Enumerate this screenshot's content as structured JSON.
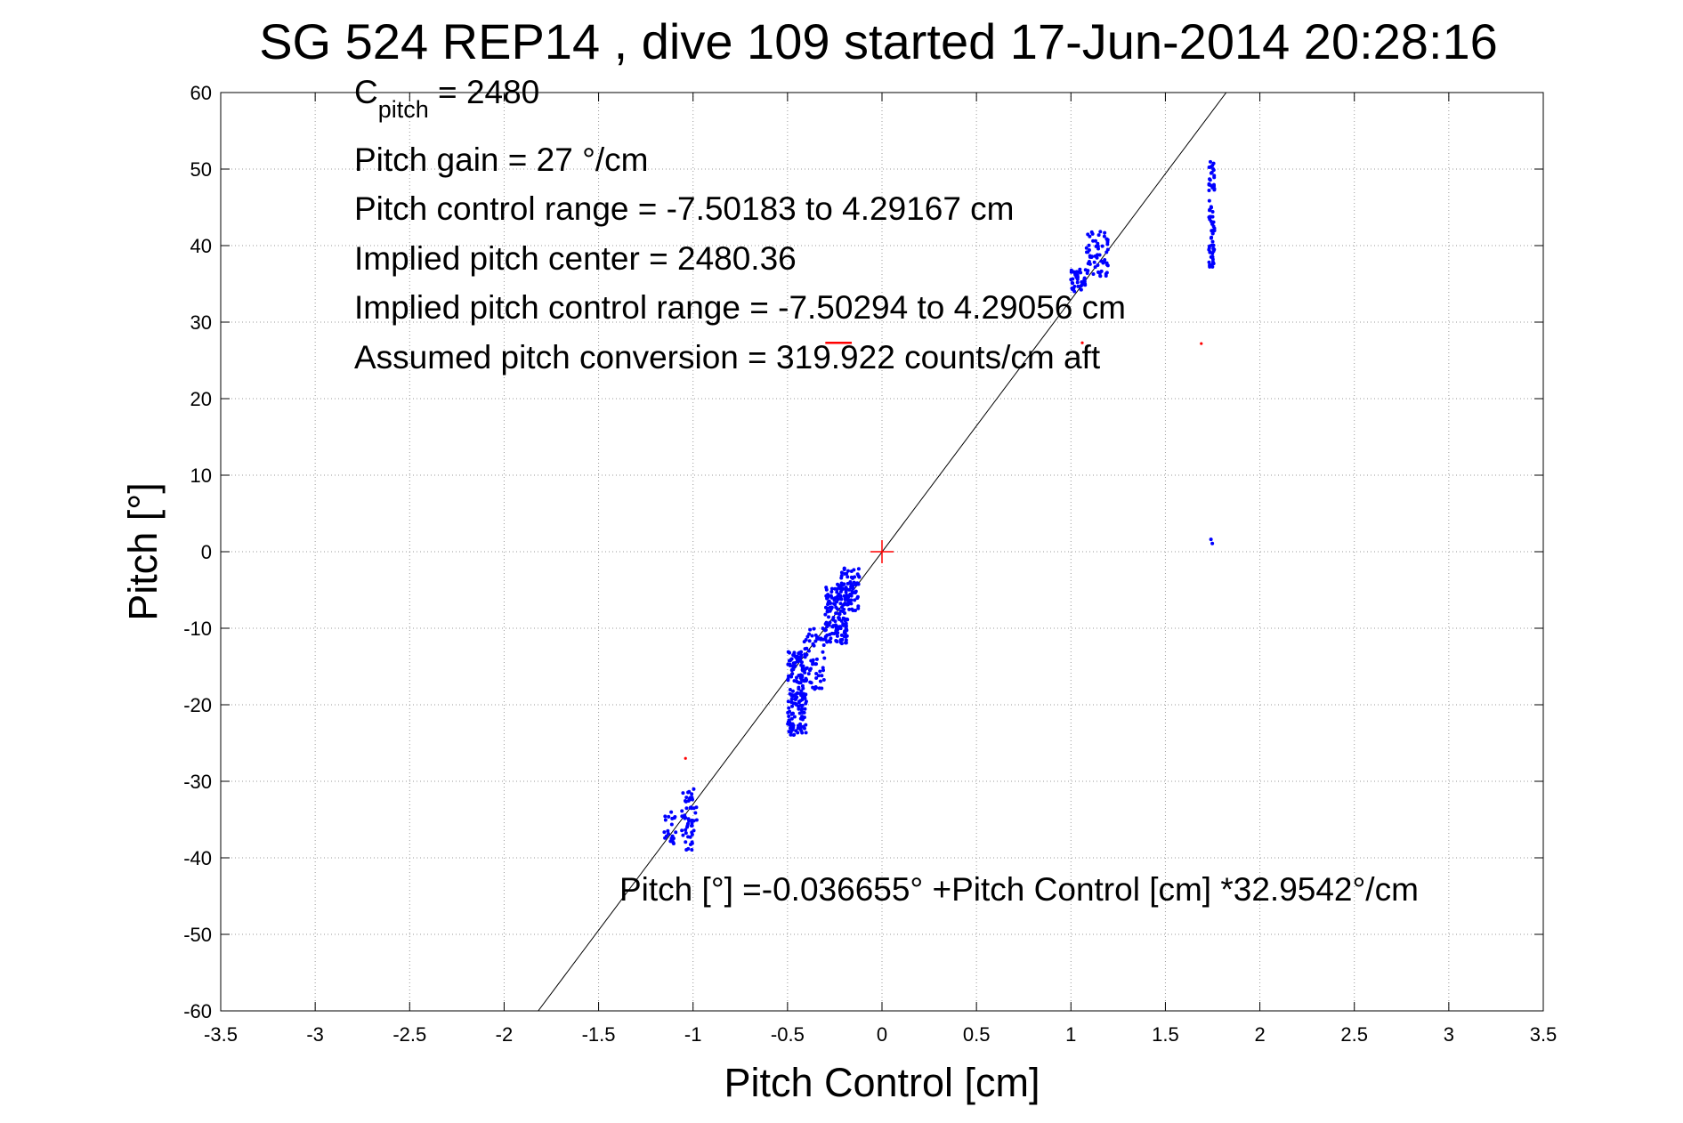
{
  "chart_data": {
    "type": "scatter",
    "title": "SG 524   REP14  , dive 109 started 17-Jun-2014 20:28:16",
    "xlabel": "Pitch Control [cm]",
    "ylabel": "Pitch [°]",
    "xlim": [
      -3.5,
      3.5
    ],
    "ylim": [
      -60,
      60
    ],
    "xticks": [
      -3.5,
      -3,
      -2.5,
      -2,
      -1.5,
      -1,
      -0.5,
      0,
      0.5,
      1,
      1.5,
      2,
      2.5,
      3,
      3.5
    ],
    "xtick_labels": [
      "-3.5",
      "-3",
      "-2.5",
      "-2",
      "-1.5",
      "-1",
      "-0.5",
      "0",
      "0.5",
      "1",
      "1.5",
      "2",
      "2.5",
      "3",
      "3.5"
    ],
    "yticks": [
      -60,
      -50,
      -40,
      -30,
      -20,
      -10,
      0,
      10,
      20,
      30,
      40,
      50,
      60
    ],
    "ytick_labels": [
      "-60",
      "-50",
      "-40",
      "-30",
      "-20",
      "-10",
      "0",
      "10",
      "20",
      "30",
      "40",
      "50",
      "60"
    ],
    "grid": true,
    "annotations": {
      "c_pitch_main": "C",
      "c_pitch_sub": "pitch",
      "c_pitch_value": " = 2480",
      "gain": "Pitch gain = 27 °/cm",
      "range": "Pitch control range = -7.50183 to 4.29167 cm",
      "center": "Implied pitch center = 2480.36",
      "implied_range": "Implied pitch control range = -7.50294 to 4.29056 cm",
      "conversion": "Assumed pitch conversion = 319.922 counts/cm aft",
      "fit_equation": "Pitch [°] =-0.036655° +Pitch Control [cm] *32.9542°/cm"
    },
    "fit_line": {
      "intercept": -0.036655,
      "slope": 32.9542,
      "color": "#000000"
    },
    "center_marker": {
      "x": 0,
      "y": 0,
      "color": "#ff0000"
    },
    "series": [
      {
        "color": "#0000ff",
        "clusters": [
          {
            "x": [
              -1.16,
              -1.09
            ],
            "y": [
              -39,
              -34
            ],
            "n": 22
          },
          {
            "x": [
              -1.06,
              -0.98
            ],
            "y": [
              -39,
              -31
            ],
            "n": 55
          },
          {
            "x": [
              -0.5,
              -0.4
            ],
            "y": [
              -24,
              -13
            ],
            "n": 160
          },
          {
            "x": [
              -0.42,
              -0.3
            ],
            "y": [
              -18,
              -10
            ],
            "n": 60
          },
          {
            "x": [
              -0.3,
              -0.18
            ],
            "y": [
              -12,
              -4
            ],
            "n": 140
          },
          {
            "x": [
              -0.22,
              -0.12
            ],
            "y": [
              -8,
              -2
            ],
            "n": 70
          },
          {
            "x": [
              1.0,
              1.08
            ],
            "y": [
              34,
              37
            ],
            "n": 40
          },
          {
            "x": [
              1.08,
              1.2
            ],
            "y": [
              36,
              42
            ],
            "n": 60
          },
          {
            "x": [
              1.73,
              1.76
            ],
            "y": [
              37,
              51
            ],
            "n": 70
          },
          {
            "x": [
              1.74,
              1.75
            ],
            "y": [
              1,
              2
            ],
            "n": 2
          }
        ]
      },
      {
        "color": "#ff0000",
        "points": [
          {
            "x": -1.04,
            "y": -27
          },
          {
            "x": 1.06,
            "y": 27.3
          },
          {
            "x": 1.69,
            "y": 27.2
          }
        ],
        "segment": {
          "x": [
            -0.3,
            -0.16
          ],
          "y": [
            27.3,
            27.3
          ]
        }
      }
    ]
  }
}
